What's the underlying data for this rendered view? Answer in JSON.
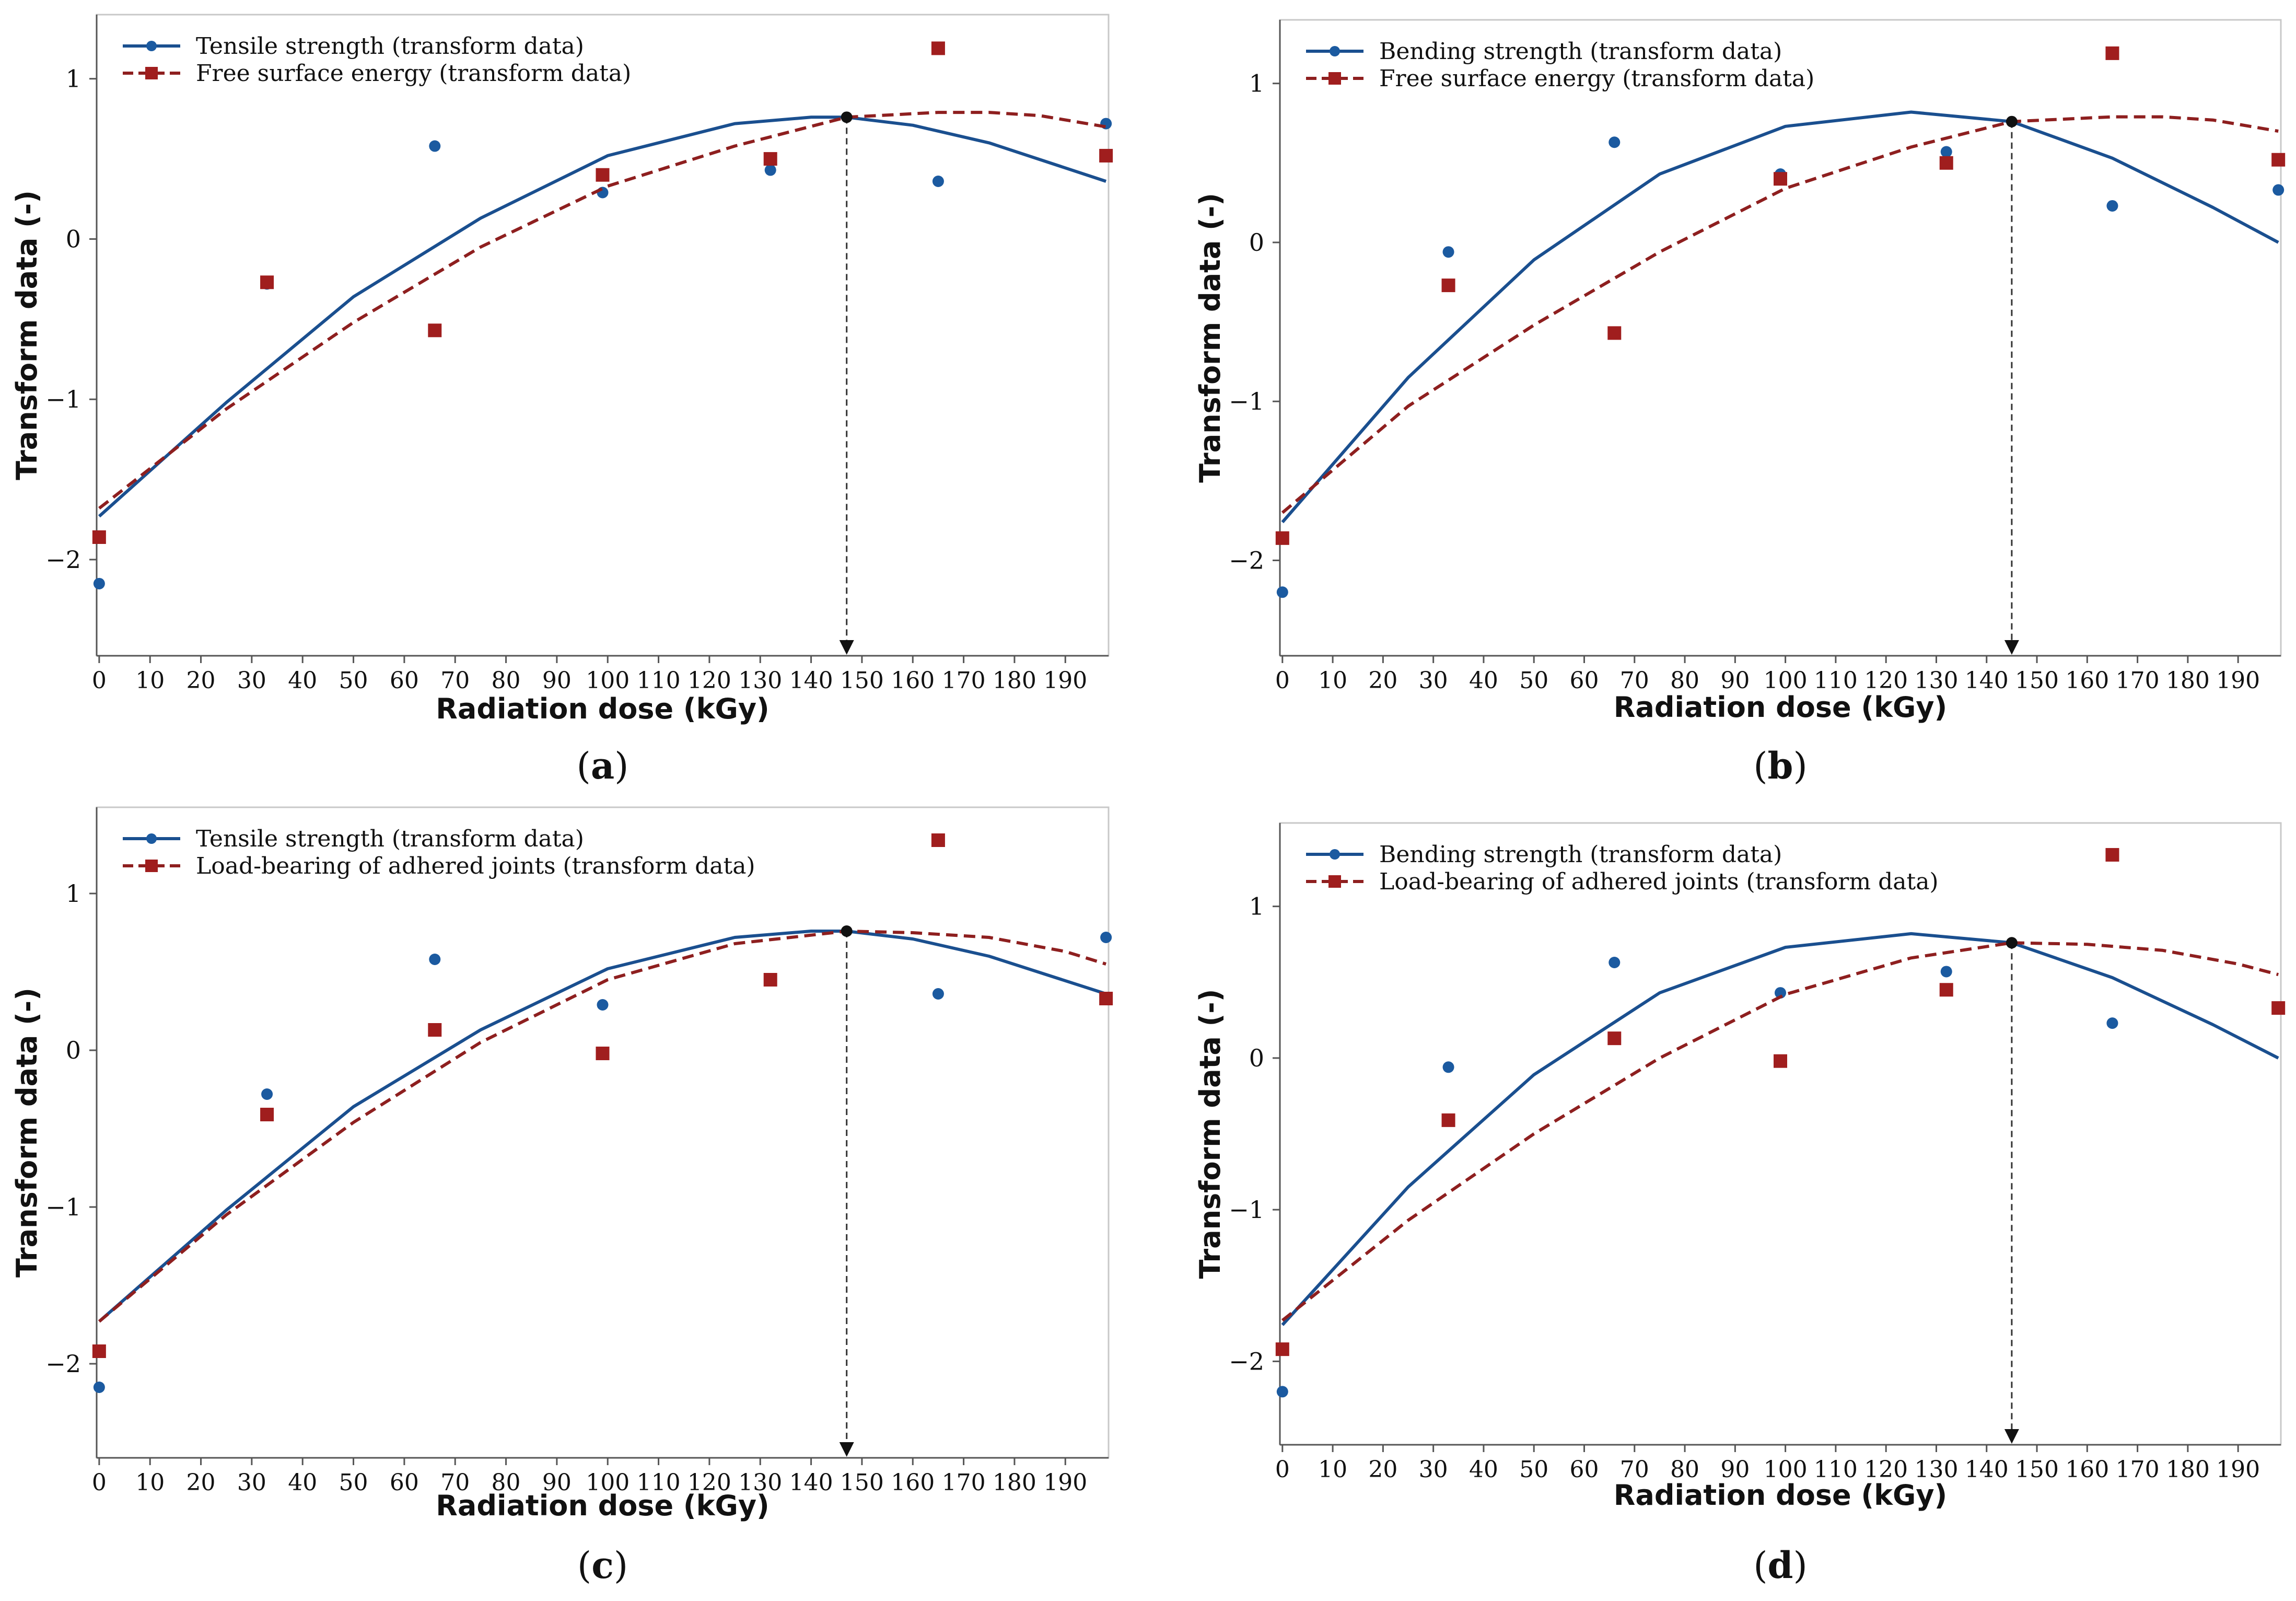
{
  "colors": {
    "series1": "#1a4f8f",
    "series2": "#8e1f1f",
    "marker1": "#1b5aa0",
    "marker2": "#a01e1e",
    "axis": "#555555",
    "frame": "#c8c8c8",
    "optimum": "#111111"
  },
  "chart_data": [
    {
      "type": "scatter",
      "panel_label": "a",
      "xlabel": "Radiation dose (kGy)",
      "ylabel": "Transform data (-)",
      "xlim": [
        -0.5,
        198.5
      ],
      "ylim": [
        -2.6,
        1.4
      ],
      "xticks": [
        0,
        10,
        20,
        30,
        40,
        50,
        60,
        70,
        80,
        90,
        100,
        110,
        120,
        130,
        140,
        150,
        160,
        170,
        180,
        190
      ],
      "yticks": [
        -2,
        -1,
        0,
        1
      ],
      "ytick_labels": [
        "−2",
        "−1",
        "0",
        "1"
      ],
      "legend_position": "top-left",
      "optimum": {
        "x": 147,
        "y": 0.76
      },
      "series": [
        {
          "name": "Tensile strength (transform data)",
          "style": "solid",
          "marker": "circle",
          "points": {
            "x": [
              0,
              33,
              66,
              99,
              132,
              165,
              198
            ],
            "y": [
              -2.15,
              -0.28,
              0.58,
              0.29,
              0.43,
              0.36,
              0.72
            ]
          },
          "fit": {
            "x": [
              0,
              25,
              50,
              75,
              100,
              125,
              140,
              147,
              160,
              175,
              198
            ],
            "y": [
              -1.73,
              -1.02,
              -0.36,
              0.13,
              0.52,
              0.72,
              0.76,
              0.76,
              0.71,
              0.6,
              0.36
            ]
          }
        },
        {
          "name": "Free surface energy (transform data)",
          "style": "dashed",
          "marker": "square",
          "points": {
            "x": [
              0,
              33,
              66,
              99,
              132,
              165,
              198
            ],
            "y": [
              -1.86,
              -0.27,
              -0.57,
              0.4,
              0.5,
              1.19,
              0.52
            ]
          },
          "fit": {
            "x": [
              0,
              25,
              50,
              75,
              100,
              125,
              147,
              165,
              175,
              185,
              198
            ],
            "y": [
              -1.68,
              -1.06,
              -0.52,
              -0.05,
              0.33,
              0.58,
              0.76,
              0.79,
              0.79,
              0.77,
              0.7
            ]
          }
        }
      ]
    },
    {
      "type": "scatter",
      "panel_label": "b",
      "xlabel": "Radiation dose (kGy)",
      "ylabel": "Transform data (-)",
      "xlim": [
        -0.5,
        198.5
      ],
      "ylim": [
        -2.6,
        1.4
      ],
      "xticks": [
        0,
        10,
        20,
        30,
        40,
        50,
        60,
        70,
        80,
        90,
        100,
        110,
        120,
        130,
        140,
        150,
        160,
        170,
        180,
        190
      ],
      "yticks": [
        -2,
        -1,
        0,
        1
      ],
      "ytick_labels": [
        "−2",
        "−1",
        "0",
        "1"
      ],
      "legend_position": "top-left",
      "optimum": {
        "x": 145,
        "y": 0.76
      },
      "series": [
        {
          "name": "Bending strength (transform data)",
          "style": "solid",
          "marker": "circle",
          "points": {
            "x": [
              0,
              33,
              66,
              99,
              132,
              165,
              198
            ],
            "y": [
              -2.2,
              -0.06,
              0.63,
              0.43,
              0.57,
              0.23,
              0.33
            ]
          },
          "fit": {
            "x": [
              0,
              25,
              50,
              75,
              100,
              125,
              145,
              165,
              185,
              198
            ],
            "y": [
              -1.76,
              -0.85,
              -0.11,
              0.43,
              0.73,
              0.82,
              0.76,
              0.53,
              0.22,
              0.0
            ]
          }
        },
        {
          "name": "Free surface energy (transform data)",
          "style": "dashed",
          "marker": "square",
          "points": {
            "x": [
              0,
              33,
              66,
              99,
              132,
              165,
              198
            ],
            "y": [
              -1.86,
              -0.27,
              -0.57,
              0.4,
              0.5,
              1.19,
              0.52
            ]
          },
          "fit": {
            "x": [
              0,
              25,
              50,
              75,
              100,
              125,
              145,
              165,
              175,
              185,
              198
            ],
            "y": [
              -1.7,
              -1.03,
              -0.52,
              -0.06,
              0.34,
              0.6,
              0.76,
              0.79,
              0.79,
              0.77,
              0.7
            ]
          }
        }
      ]
    },
    {
      "type": "scatter",
      "panel_label": "c",
      "xlabel": "Radiation dose (kGy)",
      "ylabel": "Transform data (-)",
      "xlim": [
        -0.5,
        198.5
      ],
      "ylim": [
        -2.6,
        1.55
      ],
      "xticks": [
        0,
        10,
        20,
        30,
        40,
        50,
        60,
        70,
        80,
        90,
        100,
        110,
        120,
        130,
        140,
        150,
        160,
        170,
        180,
        190
      ],
      "yticks": [
        -2,
        -1,
        0,
        1
      ],
      "ytick_labels": [
        "−2",
        "−1",
        "0",
        "1"
      ],
      "legend_position": "top-left",
      "optimum": {
        "x": 147,
        "y": 0.76
      },
      "series": [
        {
          "name": "Tensile strength (transform data)",
          "style": "solid",
          "marker": "circle",
          "points": {
            "x": [
              0,
              33,
              66,
              99,
              132,
              165,
              198
            ],
            "y": [
              -2.15,
              -0.28,
              0.58,
              0.29,
              0.45,
              0.36,
              0.72
            ]
          },
          "fit": {
            "x": [
              0,
              25,
              50,
              75,
              100,
              125,
              140,
              147,
              160,
              175,
              198
            ],
            "y": [
              -1.73,
              -1.02,
              -0.36,
              0.13,
              0.52,
              0.72,
              0.76,
              0.76,
              0.71,
              0.6,
              0.36
            ]
          }
        },
        {
          "name": "Load-bearing of adhered joints (transform data)",
          "style": "dashed",
          "marker": "square",
          "points": {
            "x": [
              0,
              33,
              66,
              99,
              132,
              165,
              198
            ],
            "y": [
              -1.92,
              -0.41,
              0.13,
              -0.02,
              0.45,
              1.34,
              0.33
            ]
          },
          "fit": {
            "x": [
              0,
              25,
              50,
              75,
              100,
              125,
              147,
              160,
              175,
              190,
              198
            ],
            "y": [
              -1.73,
              -1.05,
              -0.46,
              0.05,
              0.45,
              0.68,
              0.76,
              0.75,
              0.72,
              0.63,
              0.55
            ]
          }
        }
      ]
    },
    {
      "type": "scatter",
      "panel_label": "d",
      "xlabel": "Radiation dose (kGy)",
      "ylabel": "Transform data (-)",
      "xlim": [
        -0.5,
        198.5
      ],
      "ylim": [
        -2.55,
        1.55
      ],
      "xticks": [
        0,
        10,
        20,
        30,
        40,
        50,
        60,
        70,
        80,
        90,
        100,
        110,
        120,
        130,
        140,
        150,
        160,
        170,
        180,
        190
      ],
      "yticks": [
        -2,
        -1,
        0,
        1
      ],
      "ytick_labels": [
        "−2",
        "−1",
        "0",
        "1"
      ],
      "legend_position": "top-left",
      "optimum": {
        "x": 145,
        "y": 0.76
      },
      "series": [
        {
          "name": "Bending strength (transform data)",
          "style": "solid",
          "marker": "circle",
          "points": {
            "x": [
              0,
              33,
              66,
              99,
              132,
              165,
              198
            ],
            "y": [
              -2.2,
              -0.06,
              0.63,
              0.43,
              0.57,
              0.23,
              0.33
            ]
          },
          "fit": {
            "x": [
              0,
              25,
              50,
              75,
              100,
              125,
              145,
              165,
              185,
              198
            ],
            "y": [
              -1.76,
              -0.85,
              -0.11,
              0.43,
              0.73,
              0.82,
              0.76,
              0.53,
              0.22,
              0.0
            ]
          }
        },
        {
          "name": "Load-bearing of adhered joints (transform data)",
          "style": "dashed",
          "marker": "square",
          "points": {
            "x": [
              0,
              33,
              66,
              99,
              132,
              165,
              198
            ],
            "y": [
              -1.92,
              -0.41,
              0.13,
              -0.02,
              0.45,
              1.34,
              0.33
            ]
          },
          "fit": {
            "x": [
              0,
              25,
              50,
              75,
              100,
              125,
              145,
              160,
              175,
              190,
              198
            ],
            "y": [
              -1.73,
              -1.07,
              -0.5,
              0.0,
              0.42,
              0.66,
              0.76,
              0.75,
              0.71,
              0.62,
              0.55
            ]
          }
        }
      ]
    }
  ]
}
